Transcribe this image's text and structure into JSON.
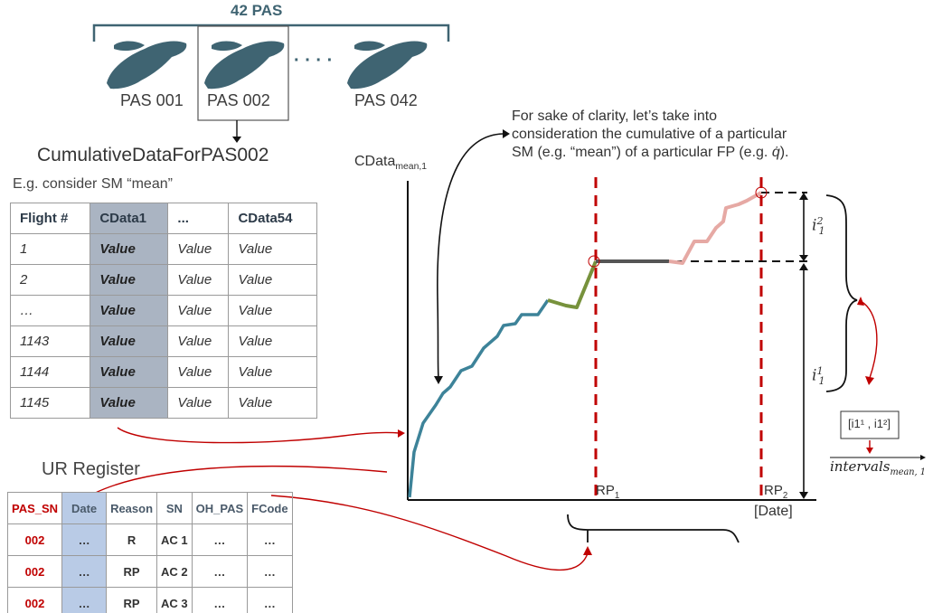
{
  "pas_group": {
    "title": "42 PAS",
    "items": [
      "PAS 001",
      "PAS 002",
      "PAS 042"
    ],
    "ellipsis": "· · · ·"
  },
  "cumulative_title": "CumulativeDataForPAS002",
  "sm_note": "E.g. consider SM “mean”",
  "flight_table": {
    "headers": [
      "Flight #",
      "CData1",
      "...",
      "CData54"
    ],
    "rows": [
      [
        "1",
        "Value",
        "Value",
        "Value"
      ],
      [
        "2",
        "Value",
        "Value",
        "Value"
      ],
      [
        "…",
        "Value",
        "Value",
        "Value"
      ],
      [
        "1143",
        "Value",
        "Value",
        "Value"
      ],
      [
        "1144",
        "Value",
        "Value",
        "Value"
      ],
      [
        "1145",
        "Value",
        "Value",
        "Value"
      ]
    ]
  },
  "ur_register": {
    "title": "UR Register",
    "headers": [
      "PAS_SN",
      "Date",
      "Reason",
      "SN",
      "OH_PAS",
      "FCode"
    ],
    "rows": [
      [
        "002",
        "…",
        "R",
        "AC 1",
        "…",
        "…"
      ],
      [
        "002",
        "…",
        "RP",
        "AC 2",
        "…",
        "…"
      ],
      [
        "002",
        "…",
        "RP",
        "AC 3",
        "…",
        "…"
      ]
    ]
  },
  "clarity_note": [
    "For sake of clarity, let’s take into",
    "consideration the cumulative of a particular",
    "SM (e.g. “mean”) of a particular FP (e.g. "
  ],
  "clarity_symbol": "q̇",
  "chart": {
    "ylabel_main": "CData",
    "ylabel_sub": "mean,1",
    "xlabel": "[Date]",
    "rp1_main": "RP",
    "rp1_sub": "1",
    "rp2_main": "RP",
    "rp2_sub": "2",
    "i1_main": "i",
    "i1_sub": "1",
    "i1_sup": "1",
    "i2_main": "i",
    "i2_sub": "1",
    "i2_sup": "2"
  },
  "interval_pair": "[i1¹ , i1²]",
  "intervals_main": "intervals",
  "intervals_sub": "mean, 1",
  "colors": {
    "teal": "#3d8399",
    "green": "#77923c",
    "grey_segment": "#555555",
    "pink": "#e6a9a4",
    "red_dash": "#c00000",
    "pas_silhouette": "#3f6472"
  }
}
